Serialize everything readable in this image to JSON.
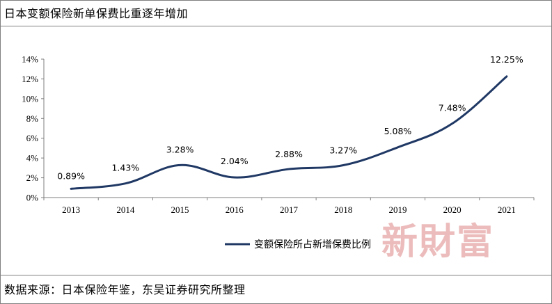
{
  "title": "日本变额保险新单保费比重逐年增加",
  "source": "数据来源：日本保险年鉴，东吴证券研究所整理",
  "watermark": "新財富",
  "chart_data": {
    "type": "line",
    "x": [
      "2013",
      "2014",
      "2015",
      "2016",
      "2017",
      "2018",
      "2019",
      "2020",
      "2021"
    ],
    "series": [
      {
        "name": "变额保险所占新增保费比例",
        "values": [
          0.89,
          1.43,
          3.28,
          2.04,
          2.88,
          3.27,
          5.08,
          7.48,
          12.25
        ],
        "labels": [
          "0.89%",
          "1.43%",
          "3.28%",
          "2.04%",
          "2.88%",
          "3.27%",
          "5.08%",
          "7.48%",
          "12.25%"
        ]
      }
    ],
    "ylim": [
      0,
      14
    ],
    "yticks": [
      "0%",
      "2%",
      "4%",
      "6%",
      "8%",
      "10%",
      "12%",
      "14%"
    ],
    "grid": false,
    "legend_position": "bottom-center",
    "colors": {
      "line": "#1f3864",
      "axis": "#7f7f7f",
      "watermark": "#e5a0a0"
    }
  }
}
